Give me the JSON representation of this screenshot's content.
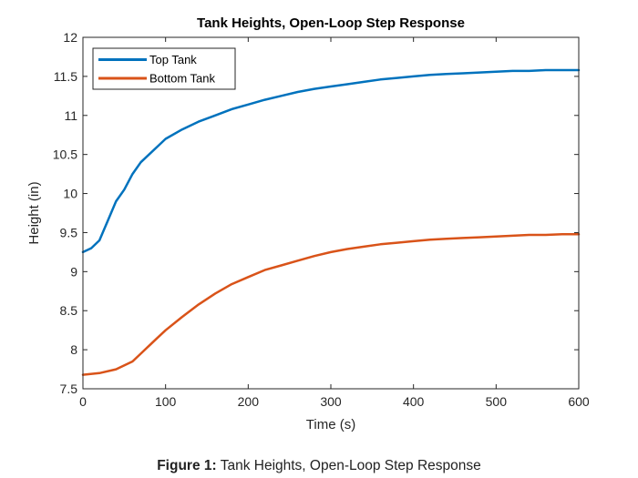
{
  "caption": {
    "label": "Figure 1:",
    "text": "Tank Heights, Open-Loop Step Response"
  },
  "colors": {
    "top_tank": "#0072BD",
    "bottom_tank": "#D95319",
    "axes": "#262626"
  },
  "chart_data": {
    "type": "line",
    "title": "Tank Heights, Open-Loop Step Response",
    "xlabel": "Time (s)",
    "ylabel": "Height (in)",
    "xlim": [
      0,
      600
    ],
    "ylim": [
      7.5,
      12
    ],
    "xticks": [
      0,
      100,
      200,
      300,
      400,
      500,
      600
    ],
    "yticks": [
      7.5,
      8,
      8.5,
      9,
      9.5,
      10,
      10.5,
      11,
      11.5,
      12
    ],
    "ytick_labels": [
      "7.5",
      "8",
      "8.5",
      "9",
      "9.5",
      "10",
      "10.5",
      "11",
      "11.5",
      "12"
    ],
    "grid": false,
    "legend": {
      "position": "top-left"
    },
    "series": [
      {
        "name": "Top Tank",
        "color": "#0072BD",
        "x": [
          0,
          10,
          20,
          30,
          40,
          50,
          60,
          70,
          80,
          90,
          100,
          120,
          140,
          160,
          180,
          200,
          220,
          240,
          260,
          280,
          300,
          320,
          340,
          360,
          380,
          400,
          420,
          440,
          460,
          480,
          500,
          520,
          540,
          560,
          580,
          600
        ],
        "y": [
          9.25,
          9.3,
          9.4,
          9.65,
          9.9,
          10.05,
          10.25,
          10.4,
          10.5,
          10.6,
          10.7,
          10.82,
          10.92,
          11.0,
          11.08,
          11.14,
          11.2,
          11.25,
          11.3,
          11.34,
          11.37,
          11.4,
          11.43,
          11.46,
          11.48,
          11.5,
          11.52,
          11.53,
          11.54,
          11.55,
          11.56,
          11.57,
          11.57,
          11.58,
          11.58,
          11.58
        ]
      },
      {
        "name": "Bottom Tank",
        "color": "#D95319",
        "x": [
          0,
          20,
          40,
          60,
          70,
          80,
          90,
          100,
          120,
          140,
          160,
          180,
          200,
          220,
          240,
          260,
          280,
          300,
          320,
          340,
          360,
          380,
          400,
          420,
          440,
          460,
          480,
          500,
          520,
          540,
          560,
          580,
          600
        ],
        "y": [
          7.68,
          7.7,
          7.75,
          7.85,
          7.95,
          8.05,
          8.15,
          8.25,
          8.42,
          8.58,
          8.72,
          8.84,
          8.93,
          9.02,
          9.08,
          9.14,
          9.2,
          9.25,
          9.29,
          9.32,
          9.35,
          9.37,
          9.39,
          9.41,
          9.42,
          9.43,
          9.44,
          9.45,
          9.46,
          9.47,
          9.47,
          9.48,
          9.48
        ]
      }
    ]
  }
}
